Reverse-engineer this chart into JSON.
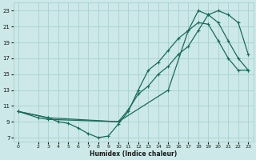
{
  "line1": {
    "x": [
      0,
      2,
      3,
      10,
      15,
      17,
      18,
      19,
      20,
      21,
      22,
      23
    ],
    "y": [
      10.3,
      9.5,
      9.3,
      9.0,
      13.0,
      20.5,
      23.0,
      22.5,
      21.5,
      19.2,
      17.0,
      15.5
    ]
  },
  "line2": {
    "x": [
      0,
      3,
      4,
      5,
      6,
      7,
      8,
      9,
      10,
      11,
      12,
      13,
      14,
      15,
      16,
      17,
      18,
      19,
      20,
      21,
      22,
      23
    ],
    "y": [
      10.3,
      9.5,
      9.0,
      8.8,
      8.2,
      7.5,
      7.0,
      7.2,
      8.7,
      10.3,
      13.0,
      15.5,
      16.5,
      18.0,
      19.5,
      20.5,
      21.5,
      21.3,
      19.2,
      17.0,
      15.5,
      15.5
    ]
  },
  "line3": {
    "x": [
      0,
      3,
      10,
      11,
      12,
      13,
      14,
      15,
      16,
      17,
      18,
      19,
      20,
      21,
      22,
      23
    ],
    "y": [
      10.3,
      9.5,
      9.0,
      10.5,
      12.5,
      13.5,
      15.0,
      16.0,
      17.5,
      18.5,
      20.5,
      22.5,
      23.0,
      22.5,
      21.5,
      17.5
    ]
  },
  "xlim": [
    -0.5,
    23.5
  ],
  "ylim": [
    6.5,
    24.0
  ],
  "yticks": [
    7,
    9,
    11,
    13,
    15,
    17,
    19,
    21,
    23
  ],
  "xticks": [
    0,
    2,
    3,
    4,
    5,
    6,
    7,
    8,
    9,
    10,
    11,
    12,
    13,
    14,
    15,
    16,
    17,
    18,
    19,
    20,
    21,
    22,
    23
  ],
  "xlabel": "Humidex (Indice chaleur)",
  "bg_color": "#cce8e8",
  "grid_color": "#aacfcf",
  "line_color": "#1a6b5a",
  "text_color": "#1a1a1a"
}
